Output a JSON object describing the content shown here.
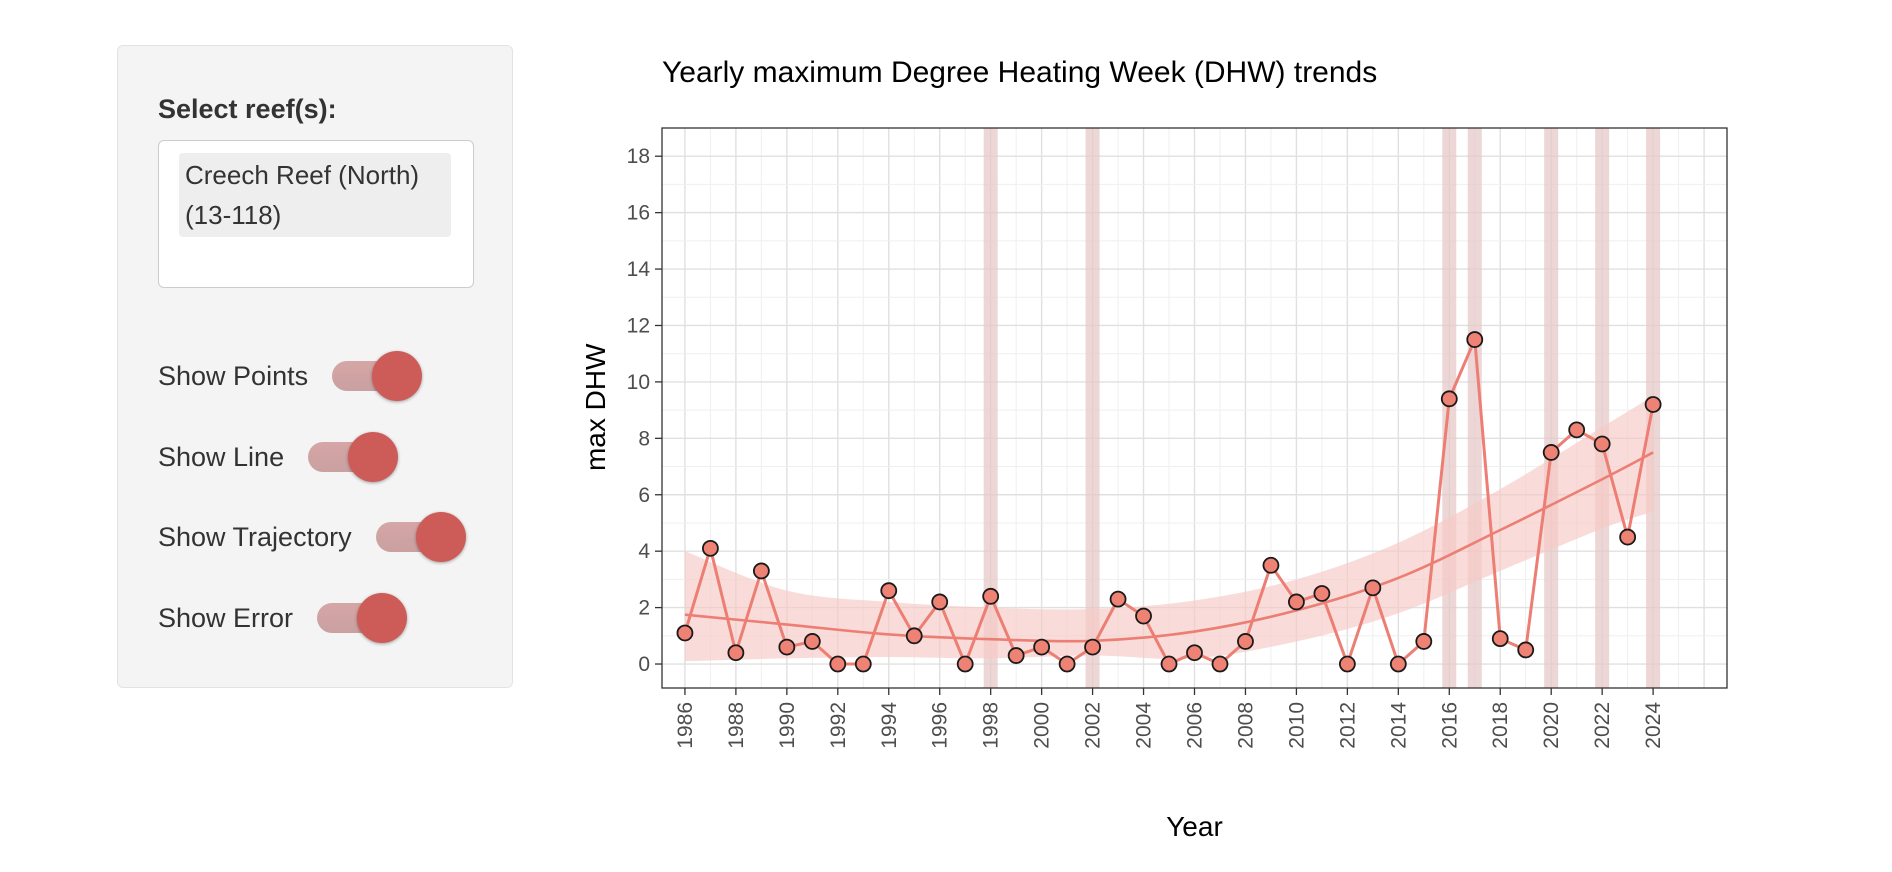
{
  "sidebar": {
    "select_label": "Select reef(s):",
    "selected_reef_line1": "Creech Reef (North)",
    "selected_reef_line2": "(13-118)",
    "toggles": [
      {
        "label": "Show Points",
        "on": true
      },
      {
        "label": "Show Line",
        "on": true
      },
      {
        "label": "Show Trajectory",
        "on": true
      },
      {
        "label": "Show Error",
        "on": true
      }
    ]
  },
  "colors": {
    "accent": "#cd5c58",
    "series": "#ec7e73",
    "point_fill": "#ee8274",
    "ribbon": "#f6c9c5",
    "highlight": "#e7c8c8"
  },
  "chart_data": {
    "type": "line",
    "title": "Yearly maximum Degree Heating Week (DHW) trends",
    "xlabel": "Year",
    "ylabel": "max DHW",
    "xlim": [
      1985.1,
      2026.9
    ],
    "ylim": [
      -0.85,
      19.0
    ],
    "yticks": [
      0,
      2,
      4,
      6,
      8,
      10,
      12,
      14,
      16,
      18
    ],
    "xticks": [
      1986,
      1988,
      1990,
      1992,
      1994,
      1996,
      1998,
      2000,
      2002,
      2004,
      2006,
      2008,
      2010,
      2012,
      2014,
      2016,
      2018,
      2020,
      2022,
      2024
    ],
    "highlight_years": [
      1998,
      2002,
      2016,
      2017,
      2020,
      2022,
      2024
    ],
    "grid": true,
    "x": [
      1986,
      1987,
      1988,
      1989,
      1990,
      1991,
      1992,
      1993,
      1994,
      1995,
      1996,
      1997,
      1998,
      1999,
      2000,
      2001,
      2002,
      2003,
      2004,
      2005,
      2006,
      2007,
      2008,
      2009,
      2010,
      2011,
      2012,
      2013,
      2014,
      2015,
      2016,
      2017,
      2018,
      2019,
      2020,
      2021,
      2022,
      2023,
      2024
    ],
    "values": [
      1.1,
      4.1,
      0.4,
      3.3,
      0.6,
      0.8,
      0.0,
      0.0,
      2.6,
      1.0,
      2.2,
      0.0,
      2.4,
      0.3,
      0.6,
      0.0,
      0.6,
      2.3,
      1.7,
      0.0,
      0.4,
      0.0,
      0.8,
      3.5,
      2.2,
      2.5,
      0.0,
      2.7,
      0.0,
      0.8,
      9.4,
      11.5,
      0.9,
      0.5,
      7.5,
      8.3,
      7.8,
      4.5,
      9.2
    ],
    "trend": {
      "x": [
        1986,
        1990,
        1994,
        1998,
        2002,
        2006,
        2010,
        2014,
        2018,
        2022,
        2024
      ],
      "fit": [
        1.75,
        1.4,
        1.05,
        0.88,
        0.82,
        1.15,
        1.9,
        3.05,
        4.75,
        6.55,
        7.5
      ],
      "upper": [
        4.0,
        2.6,
        2.2,
        2.0,
        1.95,
        2.25,
        3.0,
        4.3,
        6.2,
        8.4,
        9.5
      ],
      "lower": [
        0.1,
        0.2,
        0.25,
        0.2,
        0.3,
        0.2,
        0.8,
        1.8,
        3.3,
        4.8,
        5.4
      ]
    }
  }
}
